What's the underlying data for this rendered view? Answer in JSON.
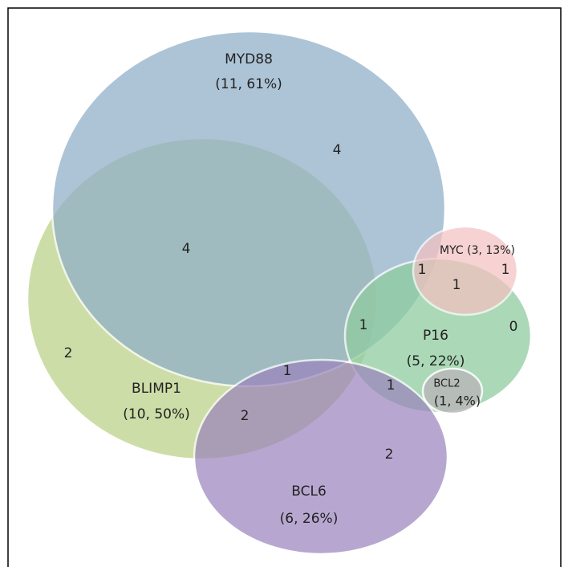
{
  "sets": [
    {
      "name": "MYD88",
      "label": "(11, 61%)"
    },
    {
      "name": "BLIMP1",
      "label": "(10, 50%)"
    },
    {
      "name": "BCL6",
      "label": "(6, 26%)"
    },
    {
      "name": "P16",
      "label": "(5, 22%)"
    },
    {
      "name": "MYC",
      "label": "(3, 13%)"
    },
    {
      "name": "BCL2",
      "label": "(1, 4%)"
    }
  ],
  "regions": [
    4,
    4,
    2,
    2,
    1,
    2,
    1,
    1,
    0,
    1,
    1,
    1
  ]
}
